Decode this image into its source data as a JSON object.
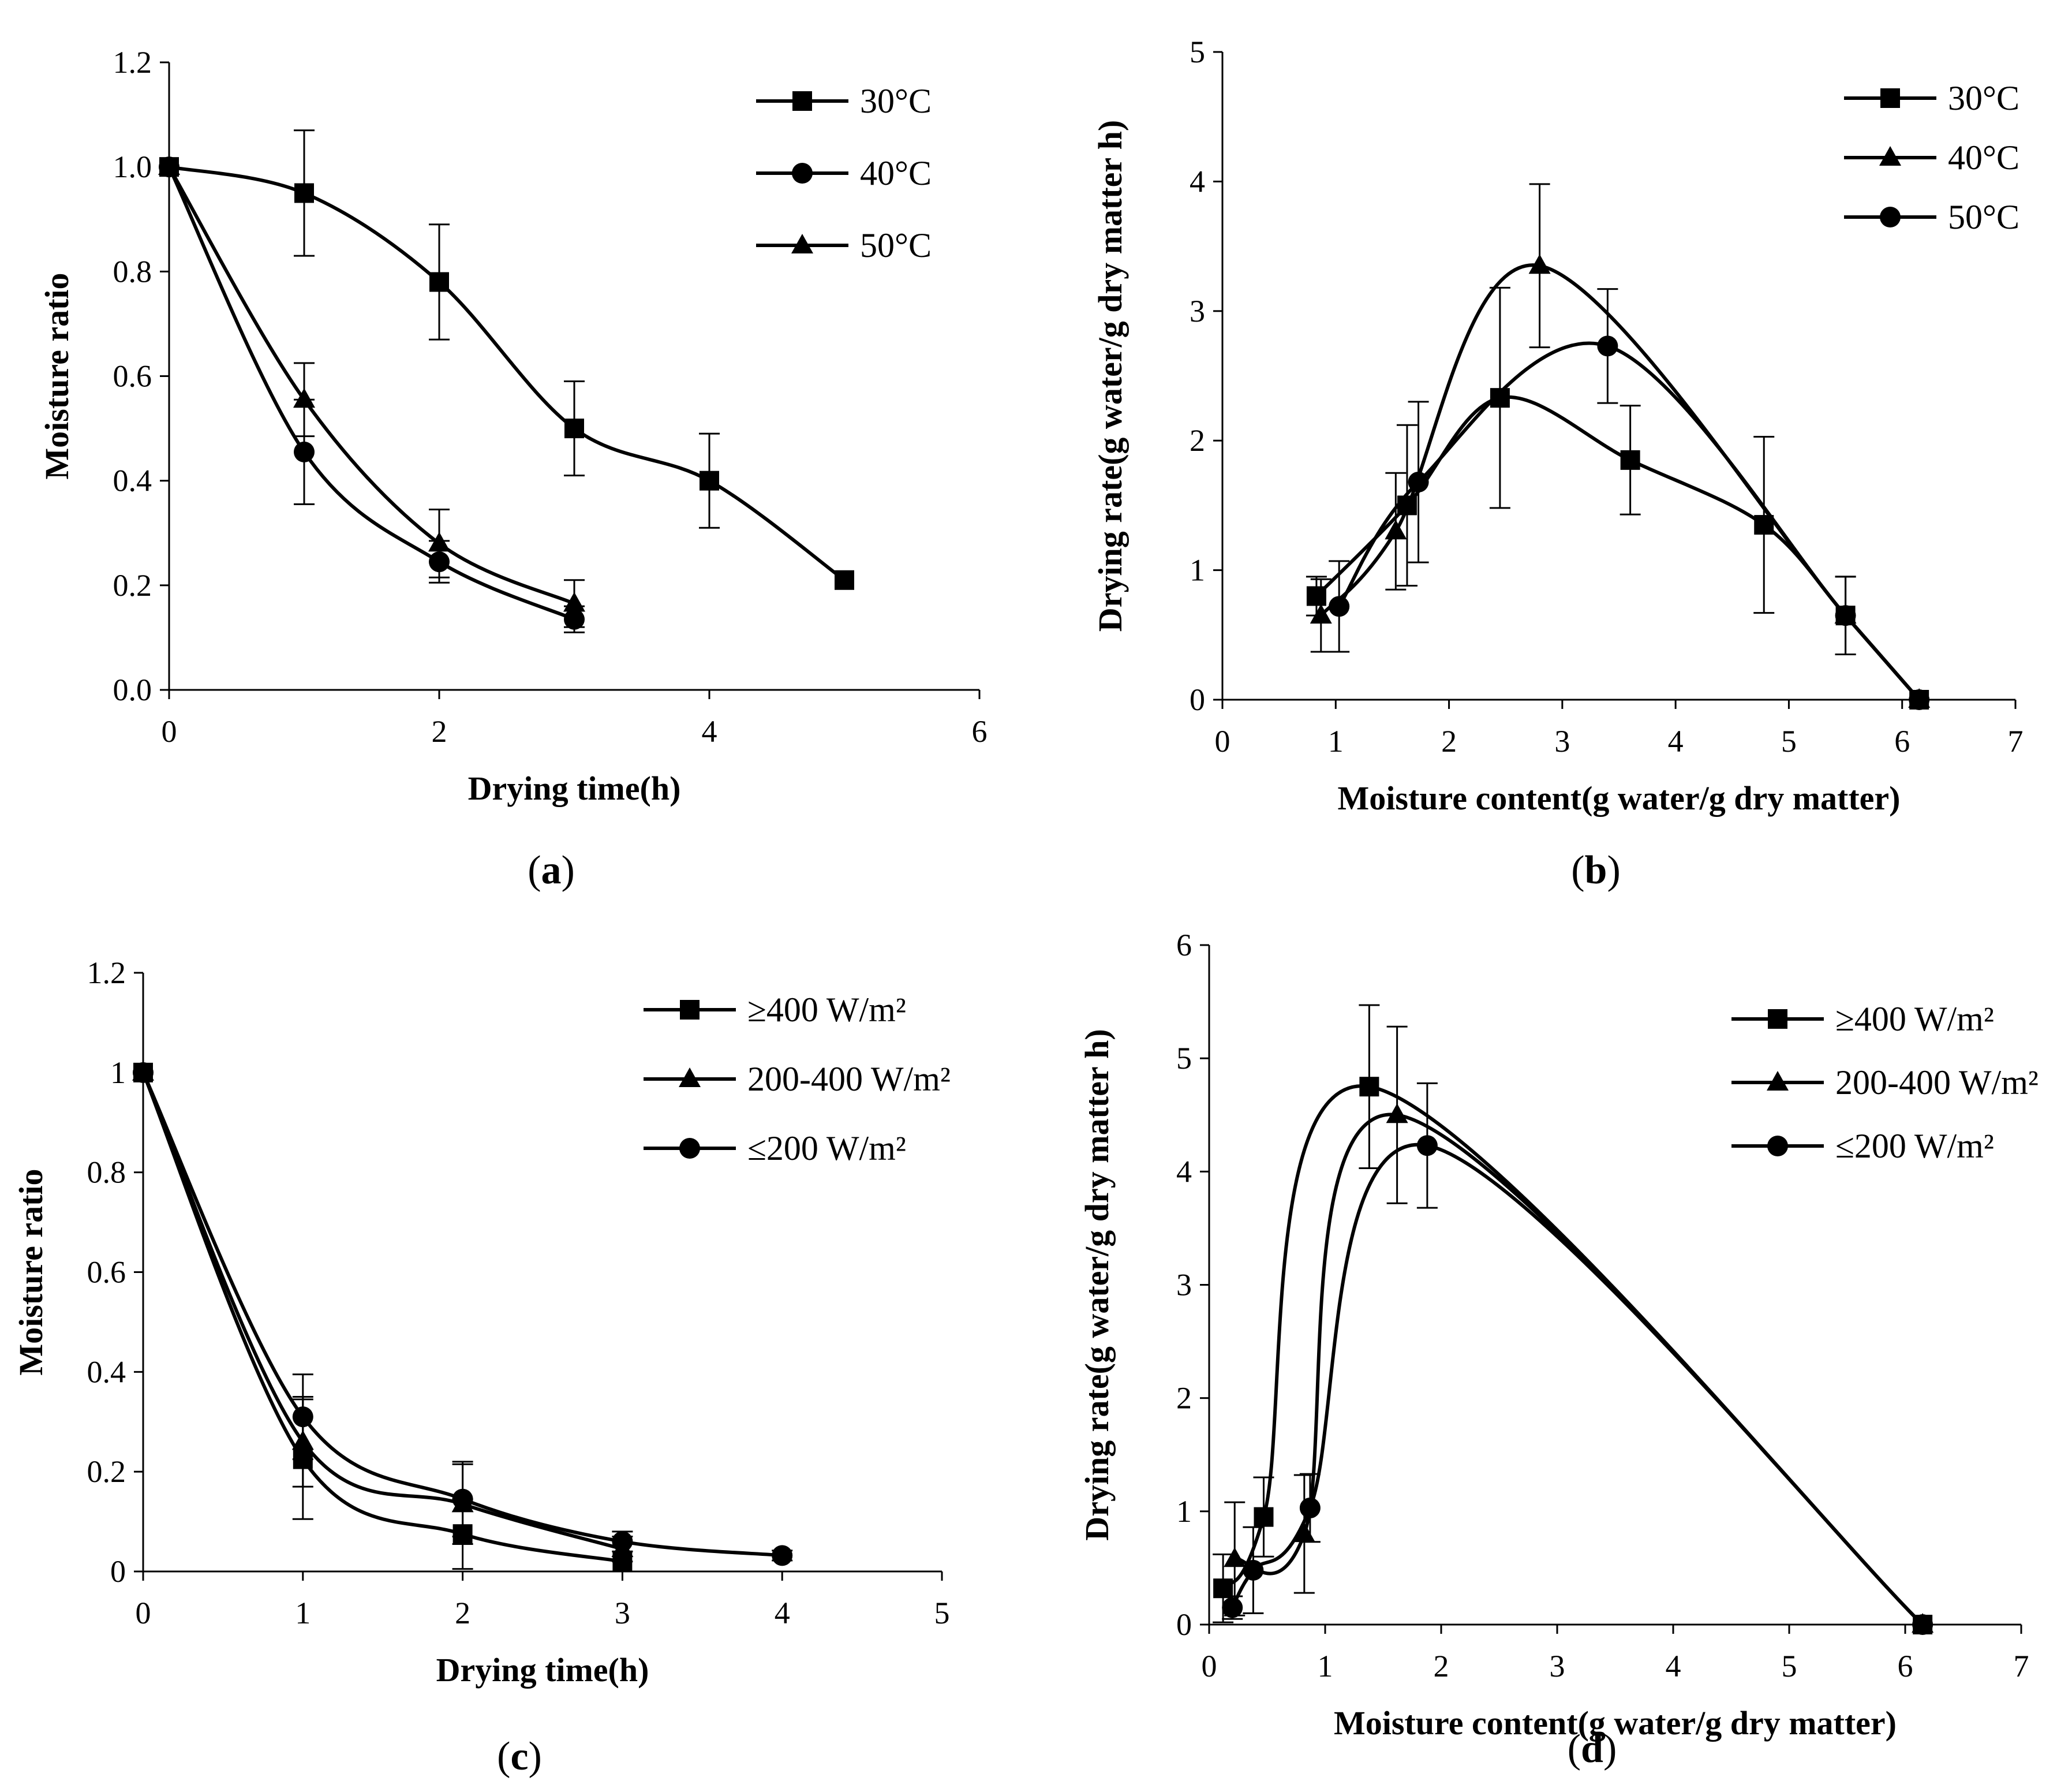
{
  "panels": {
    "a": {
      "caption": "a",
      "chart_data": {
        "type": "line",
        "title": "",
        "xlabel": "Drying time(h)",
        "ylabel": "Moisture ratio",
        "xlim": [
          0,
          6
        ],
        "ylim": [
          0,
          1.2
        ],
        "xticks": [
          0,
          2,
          4,
          6
        ],
        "yticks": [
          0,
          0.2,
          0.4,
          0.6,
          0.8,
          1.0,
          1.2
        ],
        "xtick_labels": [
          "0",
          "2",
          "4",
          "6"
        ],
        "ytick_labels": [
          "0.0",
          "0.2",
          "0.4",
          "0.6",
          "0.8",
          "1.0",
          "1.2"
        ],
        "legend_position": "top-right",
        "series": [
          {
            "name": "30°C",
            "marker": "square",
            "x": [
              0,
              1,
              2,
              3,
              4,
              5
            ],
            "y": [
              1.0,
              0.95,
              0.78,
              0.5,
              0.4,
              0.21
            ],
            "err": [
              0,
              0.12,
              0.11,
              0.09,
              0.09,
              0
            ]
          },
          {
            "name": "40°C",
            "marker": "circle",
            "x": [
              0,
              1,
              2,
              3
            ],
            "y": [
              1.0,
              0.455,
              0.245,
              0.135
            ],
            "err": [
              0,
              0.1,
              0.04,
              0.025
            ]
          },
          {
            "name": "50°C",
            "marker": "triangle",
            "x": [
              0,
              1,
              2,
              3
            ],
            "y": [
              1.0,
              0.555,
              0.28,
              0.165
            ],
            "err": [
              0,
              0.07,
              0.065,
              0.045
            ]
          }
        ]
      }
    },
    "b": {
      "caption": "b",
      "chart_data": {
        "type": "line",
        "title": "",
        "xlabel": "Moisture content(g water/g dry matter)",
        "ylabel": "Drying rate(g water/g dry matter h)",
        "xlim": [
          0,
          7
        ],
        "ylim": [
          0,
          5
        ],
        "xticks": [
          0,
          1,
          2,
          3,
          4,
          5,
          6,
          7
        ],
        "yticks": [
          0,
          1,
          2,
          3,
          4,
          5
        ],
        "xtick_labels": [
          "0",
          "1",
          "2",
          "3",
          "4",
          "5",
          "6",
          "7"
        ],
        "ytick_labels": [
          "0",
          "1",
          "2",
          "3",
          "4",
          "5"
        ],
        "legend_position": "top-right",
        "series": [
          {
            "name": "30°C",
            "marker": "square",
            "x": [
              0.83,
              1.63,
              2.45,
              3.6,
              4.78,
              5.5,
              6.15
            ],
            "y": [
              0.8,
              1.5,
              2.33,
              1.85,
              1.35,
              0.65,
              0.0
            ],
            "err": [
              0.15,
              0.62,
              0.85,
              0.42,
              0.68,
              0.3,
              0
            ]
          },
          {
            "name": "40°C",
            "marker": "triangle",
            "x": [
              0.87,
              1.53,
              2.8,
              5.5,
              6.15
            ],
            "y": [
              0.65,
              1.3,
              3.35,
              0.65,
              0.0
            ],
            "err": [
              0.28,
              0.45,
              0.63,
              0.3,
              0
            ]
          },
          {
            "name": "50°C",
            "marker": "circle",
            "x": [
              1.03,
              1.73,
              3.4,
              5.5,
              6.15
            ],
            "y": [
              0.72,
              1.68,
              2.73,
              0.65,
              0.0
            ],
            "err": [
              0.35,
              0.62,
              0.44,
              0.3,
              0
            ]
          }
        ]
      }
    },
    "c": {
      "caption": "c",
      "chart_data": {
        "type": "line",
        "title": "",
        "xlabel": "Drying time(h)",
        "ylabel": "Moisture ratio",
        "xlim": [
          0,
          5
        ],
        "ylim": [
          0,
          1.2
        ],
        "xticks": [
          0,
          1,
          2,
          3,
          4,
          5
        ],
        "yticks": [
          0,
          0.2,
          0.4,
          0.6,
          0.8,
          1.0,
          1.2
        ],
        "xtick_labels": [
          "0",
          "1",
          "2",
          "3",
          "4",
          "5"
        ],
        "ytick_labels": [
          "0",
          "0.2",
          "0.4",
          "0.6",
          "0.8",
          "1",
          "1.2"
        ],
        "legend_position": "top-right",
        "series": [
          {
            "name": "≥400 W/m²",
            "marker": "square",
            "x": [
              0,
              1,
              2,
              3
            ],
            "y": [
              1.0,
              0.225,
              0.075,
              0.02
            ],
            "err": [
              0,
              0.12,
              0.07,
              0.02
            ]
          },
          {
            "name": "200-400 W/m²",
            "marker": "triangle",
            "x": [
              0,
              1,
              2,
              3
            ],
            "y": [
              1.0,
              0.26,
              0.135,
              0.045
            ],
            "err": [
              0,
              0.09,
              0.08,
              0.025
            ]
          },
          {
            "name": "≤200 W/m²",
            "marker": "circle",
            "x": [
              0,
              1,
              2,
              3,
              4
            ],
            "y": [
              1.0,
              0.31,
              0.145,
              0.06,
              0.032
            ],
            "err": [
              0,
              0.085,
              0.075,
              0.02,
              0.01
            ]
          }
        ]
      }
    },
    "d": {
      "caption": "d",
      "chart_data": {
        "type": "line",
        "title": "",
        "xlabel": "Moisture content(g water/g dry matter)",
        "ylabel": "Drying rate(g water/g dry matter h)",
        "xlim": [
          0,
          7
        ],
        "ylim": [
          0,
          6
        ],
        "xticks": [
          0,
          1,
          2,
          3,
          4,
          5,
          6,
          7
        ],
        "yticks": [
          0,
          1,
          2,
          3,
          4,
          5,
          6
        ],
        "xtick_labels": [
          "0",
          "1",
          "2",
          "3",
          "4",
          "5",
          "6",
          "7"
        ],
        "ytick_labels": [
          "0",
          "1",
          "2",
          "3",
          "4",
          "5",
          "6"
        ],
        "legend_position": "top-right",
        "series": [
          {
            "name": "≥400 W/m²",
            "marker": "square",
            "x": [
              0.12,
              0.47,
              1.38,
              6.15
            ],
            "y": [
              0.32,
              0.95,
              4.75,
              0.0
            ],
            "err": [
              0.3,
              0.35,
              0.72,
              0
            ]
          },
          {
            "name": "200-400 W/m²",
            "marker": "triangle",
            "x": [
              0.22,
              0.82,
              1.62,
              6.15
            ],
            "y": [
              0.58,
              0.8,
              4.5,
              0.0
            ],
            "err": [
              0.5,
              0.52,
              0.78,
              0
            ]
          },
          {
            "name": "≤200 W/m²",
            "marker": "circle",
            "x": [
              0.2,
              0.38,
              0.87,
              1.88,
              6.15
            ],
            "y": [
              0.15,
              0.48,
              1.03,
              4.23,
              0.0
            ],
            "err": [
              0.1,
              0.38,
              0.3,
              0.55,
              0
            ]
          }
        ]
      }
    }
  }
}
